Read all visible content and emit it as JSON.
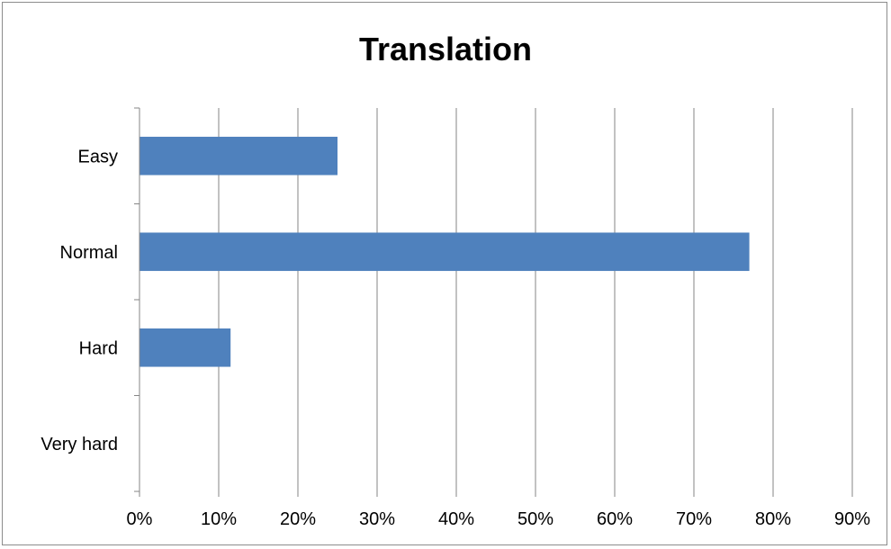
{
  "chart_data": {
    "type": "bar",
    "orientation": "horizontal",
    "title": "Translation",
    "xlabel": "",
    "ylabel": "",
    "categories": [
      "Easy",
      "Normal",
      "Hard",
      "Very hard"
    ],
    "values": [
      25,
      77,
      11.5,
      0
    ],
    "value_unit": "%",
    "xlim": [
      0,
      90
    ],
    "xticks": [
      "0%",
      "10%",
      "20%",
      "30%",
      "40%",
      "50%",
      "60%",
      "70%",
      "80%",
      "90%"
    ],
    "grid": true,
    "legend": "none",
    "bar_color": "#4f81bd",
    "gridline_color": "#868686"
  }
}
